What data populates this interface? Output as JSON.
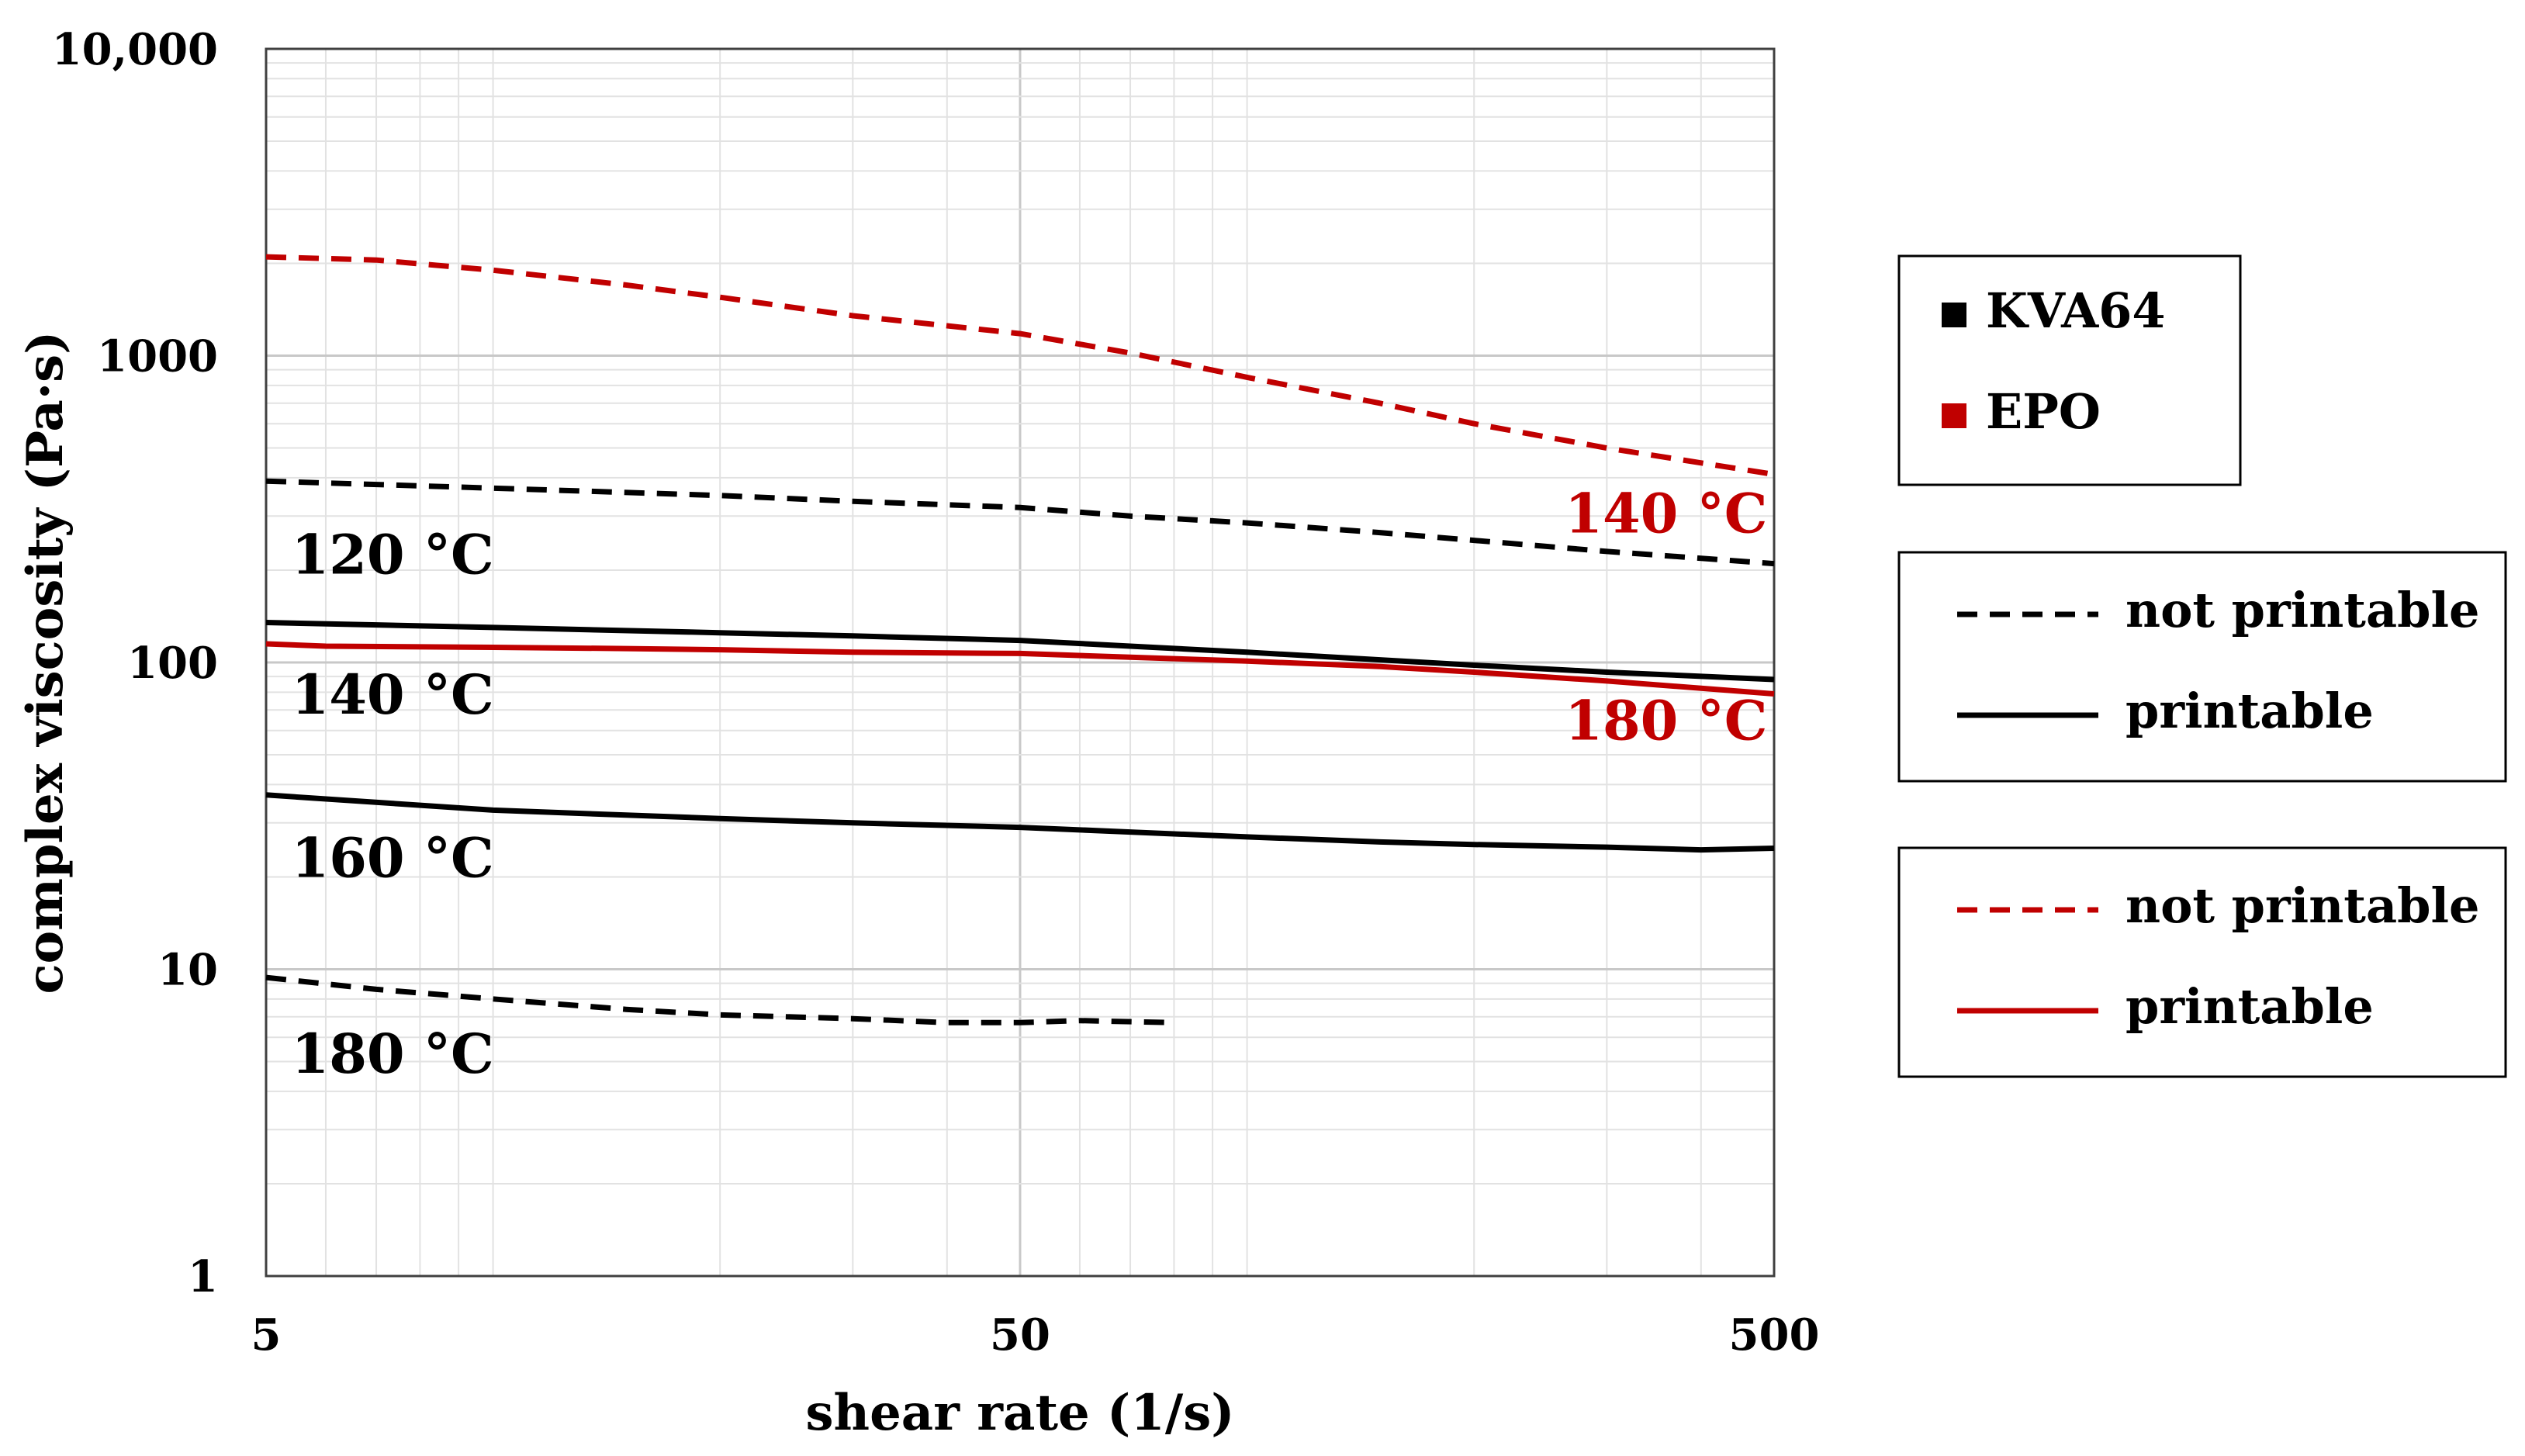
{
  "chart_data": {
    "type": "line",
    "xscale": "log",
    "yscale": "log",
    "xlabel": "shear rate (1/s)",
    "ylabel": "complex viscosity (Pa·s)",
    "xlim": [
      5,
      500
    ],
    "ylim": [
      1,
      10000
    ],
    "xticks": [
      {
        "value": 5,
        "label": "5"
      },
      {
        "value": 50,
        "label": "50"
      },
      {
        "value": 500,
        "label": "500"
      }
    ],
    "yticks": [
      {
        "value": 1,
        "label": "1"
      },
      {
        "value": 10,
        "label": "10"
      },
      {
        "value": 100,
        "label": "100"
      },
      {
        "value": 1000,
        "label": "1000"
      },
      {
        "value": 10000,
        "label": "10,000"
      }
    ],
    "grid": true,
    "colors": {
      "KVA64": "#000000",
      "EPO": "#c00000"
    },
    "series": [
      {
        "material": "EPO",
        "temperature_label": "140 °C",
        "style": "dashed",
        "printability": "not printable",
        "points": [
          [
            5,
            2100
          ],
          [
            7,
            2050
          ],
          [
            10,
            1900
          ],
          [
            15,
            1700
          ],
          [
            20,
            1550
          ],
          [
            30,
            1350
          ],
          [
            50,
            1180
          ],
          [
            70,
            1020
          ],
          [
            100,
            850
          ],
          [
            150,
            700
          ],
          [
            200,
            600
          ],
          [
            300,
            500
          ],
          [
            500,
            410
          ]
        ]
      },
      {
        "material": "KVA64",
        "temperature_label": "120 °C",
        "style": "dashed",
        "printability": "not printable",
        "points": [
          [
            5,
            390
          ],
          [
            10,
            370
          ],
          [
            20,
            350
          ],
          [
            30,
            335
          ],
          [
            50,
            320
          ],
          [
            70,
            300
          ],
          [
            100,
            285
          ],
          [
            150,
            265
          ],
          [
            200,
            250
          ],
          [
            300,
            230
          ],
          [
            500,
            210
          ]
        ]
      },
      {
        "material": "KVA64",
        "temperature_label": "140 °C",
        "style": "solid",
        "printability": "printable",
        "points": [
          [
            5,
            135
          ],
          [
            10,
            130
          ],
          [
            20,
            125
          ],
          [
            30,
            122
          ],
          [
            50,
            118
          ],
          [
            70,
            113
          ],
          [
            100,
            108
          ],
          [
            150,
            102
          ],
          [
            200,
            98
          ],
          [
            300,
            93
          ],
          [
            500,
            88
          ]
        ]
      },
      {
        "material": "EPO",
        "temperature_label": "180 °C",
        "style": "solid",
        "printability": "printable",
        "points": [
          [
            5,
            115
          ],
          [
            6,
            113
          ],
          [
            10,
            112
          ],
          [
            15,
            111
          ],
          [
            20,
            110
          ],
          [
            30,
            108
          ],
          [
            50,
            107
          ],
          [
            70,
            104
          ],
          [
            100,
            101
          ],
          [
            150,
            97
          ],
          [
            200,
            93
          ],
          [
            300,
            87
          ],
          [
            500,
            79
          ]
        ]
      },
      {
        "material": "KVA64",
        "temperature_label": "160 °C",
        "style": "solid",
        "printability": "printable",
        "points": [
          [
            5,
            37
          ],
          [
            10,
            33
          ],
          [
            20,
            31
          ],
          [
            30,
            30
          ],
          [
            50,
            29
          ],
          [
            70,
            28
          ],
          [
            100,
            27
          ],
          [
            150,
            26
          ],
          [
            200,
            25.5
          ],
          [
            300,
            25
          ],
          [
            400,
            24.5
          ],
          [
            500,
            24.8
          ]
        ]
      },
      {
        "material": "KVA64",
        "temperature_label": "180 °C",
        "style": "dashed",
        "printability": "not printable",
        "points": [
          [
            5,
            9.4
          ],
          [
            7,
            8.6
          ],
          [
            10,
            8
          ],
          [
            15,
            7.4
          ],
          [
            20,
            7.1
          ],
          [
            30,
            6.9
          ],
          [
            40,
            6.7
          ],
          [
            50,
            6.7
          ],
          [
            60,
            6.8
          ],
          [
            80,
            6.7
          ]
        ]
      }
    ],
    "legend": {
      "materials": [
        {
          "name": "KVA64",
          "color": "#000000"
        },
        {
          "name": "EPO",
          "color": "#c00000"
        }
      ],
      "kva_styles": [
        {
          "label": "not printable",
          "style": "dashed",
          "color": "#000000"
        },
        {
          "label": "printable",
          "style": "solid",
          "color": "#000000"
        }
      ],
      "epo_styles": [
        {
          "label": "not printable",
          "style": "dashed",
          "color": "#c00000"
        },
        {
          "label": "printable",
          "style": "solid",
          "color": "#c00000"
        }
      ],
      "placement": "right"
    },
    "annotations": [
      {
        "text": "120 °C",
        "color": "#000000",
        "x": 5.4,
        "y": 195,
        "anchor": "start"
      },
      {
        "text": "140 °C",
        "color": "#000000",
        "x": 5.4,
        "y": 68,
        "anchor": "start"
      },
      {
        "text": "160 °C",
        "color": "#000000",
        "x": 5.4,
        "y": 20,
        "anchor": "start"
      },
      {
        "text": "180 °C",
        "color": "#000000",
        "x": 5.4,
        "y": 4.6,
        "anchor": "start"
      },
      {
        "text": "140 °C",
        "color": "#c00000",
        "x": 490,
        "y": 265,
        "anchor": "end"
      },
      {
        "text": "180 °C",
        "color": "#c00000",
        "x": 490,
        "y": 56,
        "anchor": "end"
      }
    ]
  }
}
